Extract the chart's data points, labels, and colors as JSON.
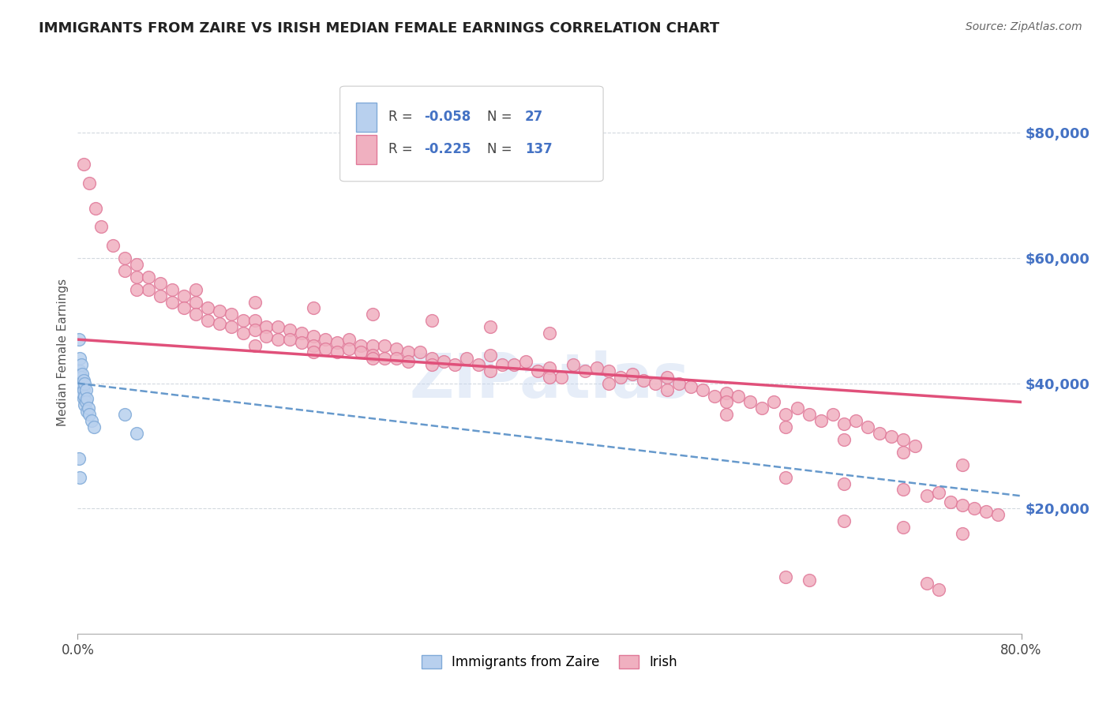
{
  "title": "IMMIGRANTS FROM ZAIRE VS IRISH MEDIAN FEMALE EARNINGS CORRELATION CHART",
  "source": "Source: ZipAtlas.com",
  "ylabel": "Median Female Earnings",
  "xlim": [
    0.0,
    0.8
  ],
  "ylim": [
    0,
    90000
  ],
  "yticks": [
    20000,
    40000,
    60000,
    80000
  ],
  "ytick_labels": [
    "$20,000",
    "$40,000",
    "$60,000",
    "$80,000"
  ],
  "xticks": [
    0.0,
    0.8
  ],
  "xtick_labels": [
    "0.0%",
    "80.0%"
  ],
  "legend_label_zaire": "Immigrants from Zaire",
  "legend_label_irish": "Irish",
  "watermark": "ZIPatlas",
  "background_color": "#ffffff",
  "grid_color": "#c8d0d8",
  "zaire_color": "#b8d0ee",
  "irish_color": "#f0b0c0",
  "zaire_edge_color": "#80aad8",
  "irish_edge_color": "#e07898",
  "trendline_irish_color": "#e0507a",
  "trendline_zaire_color": "#6699cc",
  "right_tick_color": "#4472c4",
  "zaire_R": -0.058,
  "zaire_N": 27,
  "irish_R": -0.225,
  "irish_N": 137,
  "irish_trendline": [
    47000,
    37000
  ],
  "zaire_trendline": [
    40000,
    22000
  ],
  "zaire_scatter": [
    [
      0.001,
      47000
    ],
    [
      0.002,
      44000
    ],
    [
      0.002,
      42000
    ],
    [
      0.003,
      43000
    ],
    [
      0.003,
      41000
    ],
    [
      0.003,
      39500
    ],
    [
      0.004,
      41500
    ],
    [
      0.004,
      40000
    ],
    [
      0.004,
      38500
    ],
    [
      0.005,
      40500
    ],
    [
      0.005,
      39000
    ],
    [
      0.005,
      37500
    ],
    [
      0.006,
      40000
    ],
    [
      0.006,
      38000
    ],
    [
      0.006,
      36500
    ],
    [
      0.007,
      39000
    ],
    [
      0.007,
      37000
    ],
    [
      0.008,
      37500
    ],
    [
      0.008,
      35500
    ],
    [
      0.009,
      36000
    ],
    [
      0.01,
      35000
    ],
    [
      0.012,
      34000
    ],
    [
      0.014,
      33000
    ],
    [
      0.04,
      35000
    ],
    [
      0.05,
      32000
    ],
    [
      0.001,
      28000
    ],
    [
      0.002,
      25000
    ]
  ],
  "irish_scatter": [
    [
      0.005,
      75000
    ],
    [
      0.01,
      72000
    ],
    [
      0.015,
      68000
    ],
    [
      0.02,
      65000
    ],
    [
      0.03,
      62000
    ],
    [
      0.04,
      60000
    ],
    [
      0.04,
      58000
    ],
    [
      0.05,
      59000
    ],
    [
      0.05,
      57000
    ],
    [
      0.06,
      57000
    ],
    [
      0.06,
      55000
    ],
    [
      0.07,
      56000
    ],
    [
      0.07,
      54000
    ],
    [
      0.08,
      55000
    ],
    [
      0.08,
      53000
    ],
    [
      0.09,
      54000
    ],
    [
      0.09,
      52000
    ],
    [
      0.1,
      53000
    ],
    [
      0.1,
      51000
    ],
    [
      0.11,
      52000
    ],
    [
      0.11,
      50000
    ],
    [
      0.12,
      51500
    ],
    [
      0.12,
      49500
    ],
    [
      0.13,
      51000
    ],
    [
      0.13,
      49000
    ],
    [
      0.14,
      50000
    ],
    [
      0.14,
      48000
    ],
    [
      0.15,
      50000
    ],
    [
      0.15,
      48500
    ],
    [
      0.16,
      49000
    ],
    [
      0.16,
      47500
    ],
    [
      0.17,
      49000
    ],
    [
      0.17,
      47000
    ],
    [
      0.18,
      48500
    ],
    [
      0.18,
      47000
    ],
    [
      0.19,
      48000
    ],
    [
      0.19,
      46500
    ],
    [
      0.2,
      47500
    ],
    [
      0.2,
      46000
    ],
    [
      0.21,
      47000
    ],
    [
      0.21,
      45500
    ],
    [
      0.22,
      46500
    ],
    [
      0.22,
      45000
    ],
    [
      0.23,
      47000
    ],
    [
      0.23,
      45500
    ],
    [
      0.24,
      46000
    ],
    [
      0.24,
      45000
    ],
    [
      0.25,
      46000
    ],
    [
      0.25,
      44500
    ],
    [
      0.26,
      46000
    ],
    [
      0.26,
      44000
    ],
    [
      0.27,
      45500
    ],
    [
      0.27,
      44000
    ],
    [
      0.28,
      45000
    ],
    [
      0.28,
      43500
    ],
    [
      0.29,
      45000
    ],
    [
      0.3,
      44000
    ],
    [
      0.31,
      43500
    ],
    [
      0.32,
      43000
    ],
    [
      0.33,
      44000
    ],
    [
      0.34,
      43000
    ],
    [
      0.35,
      44500
    ],
    [
      0.36,
      43000
    ],
    [
      0.37,
      43000
    ],
    [
      0.38,
      43500
    ],
    [
      0.39,
      42000
    ],
    [
      0.4,
      42500
    ],
    [
      0.41,
      41000
    ],
    [
      0.42,
      43000
    ],
    [
      0.43,
      42000
    ],
    [
      0.44,
      42500
    ],
    [
      0.45,
      42000
    ],
    [
      0.46,
      41000
    ],
    [
      0.47,
      41500
    ],
    [
      0.48,
      40500
    ],
    [
      0.49,
      40000
    ],
    [
      0.5,
      41000
    ],
    [
      0.51,
      40000
    ],
    [
      0.52,
      39500
    ],
    [
      0.53,
      39000
    ],
    [
      0.54,
      38000
    ],
    [
      0.55,
      38500
    ],
    [
      0.55,
      37000
    ],
    [
      0.56,
      38000
    ],
    [
      0.57,
      37000
    ],
    [
      0.58,
      36000
    ],
    [
      0.59,
      37000
    ],
    [
      0.6,
      35000
    ],
    [
      0.61,
      36000
    ],
    [
      0.62,
      35000
    ],
    [
      0.63,
      34000
    ],
    [
      0.64,
      35000
    ],
    [
      0.65,
      33500
    ],
    [
      0.66,
      34000
    ],
    [
      0.67,
      33000
    ],
    [
      0.68,
      32000
    ],
    [
      0.69,
      31500
    ],
    [
      0.7,
      31000
    ],
    [
      0.71,
      30000
    ],
    [
      0.05,
      55000
    ],
    [
      0.1,
      55000
    ],
    [
      0.15,
      53000
    ],
    [
      0.2,
      52000
    ],
    [
      0.25,
      51000
    ],
    [
      0.3,
      50000
    ],
    [
      0.35,
      49000
    ],
    [
      0.4,
      48000
    ],
    [
      0.15,
      46000
    ],
    [
      0.2,
      45000
    ],
    [
      0.25,
      44000
    ],
    [
      0.3,
      43000
    ],
    [
      0.35,
      42000
    ],
    [
      0.4,
      41000
    ],
    [
      0.45,
      40000
    ],
    [
      0.5,
      39000
    ],
    [
      0.55,
      35000
    ],
    [
      0.6,
      33000
    ],
    [
      0.65,
      31000
    ],
    [
      0.7,
      29000
    ],
    [
      0.75,
      27000
    ],
    [
      0.6,
      25000
    ],
    [
      0.65,
      24000
    ],
    [
      0.7,
      23000
    ],
    [
      0.72,
      22000
    ],
    [
      0.73,
      22500
    ],
    [
      0.74,
      21000
    ],
    [
      0.75,
      20500
    ],
    [
      0.76,
      20000
    ],
    [
      0.77,
      19500
    ],
    [
      0.78,
      19000
    ],
    [
      0.65,
      18000
    ],
    [
      0.7,
      17000
    ],
    [
      0.75,
      16000
    ],
    [
      0.72,
      8000
    ],
    [
      0.73,
      7000
    ],
    [
      0.6,
      9000
    ],
    [
      0.62,
      8500
    ]
  ]
}
